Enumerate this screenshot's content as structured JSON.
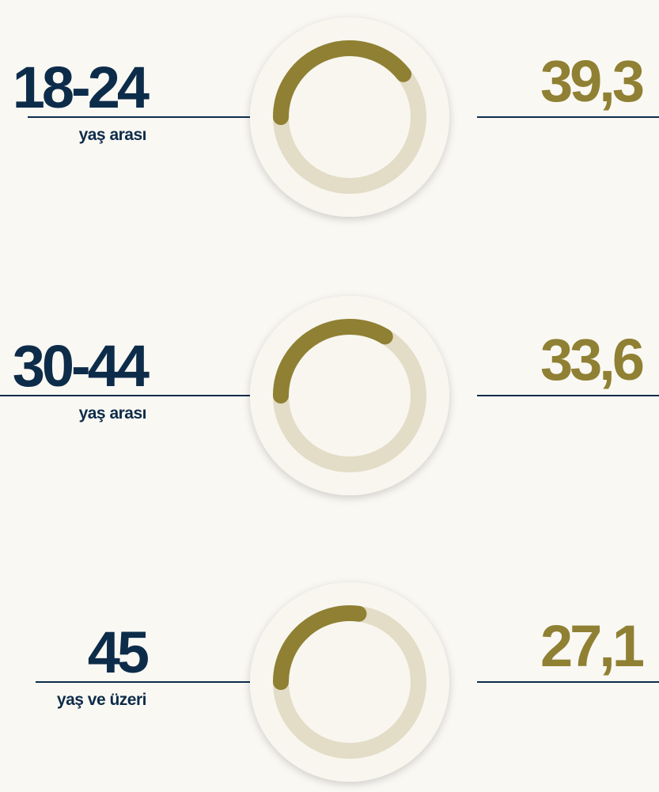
{
  "chart_data": {
    "type": "gauge",
    "categories": [
      "18-24",
      "30-44",
      "45"
    ],
    "category_captions": [
      "yaş arası",
      "yaş arası",
      "yaş ve üzeri"
    ],
    "values": [
      39.3,
      33.6,
      27.1
    ],
    "value_labels": [
      "39,3",
      "33,6",
      "27,1"
    ],
    "ylim": [
      0,
      100
    ],
    "color": "#8f8033",
    "track_color": "#e3dcc6",
    "label_color": "#0d2c4a"
  }
}
